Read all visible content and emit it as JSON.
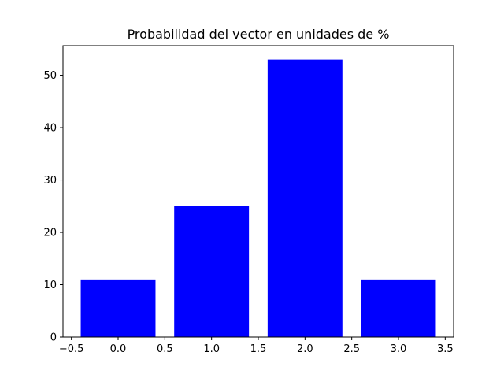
{
  "chart_data": {
    "type": "bar",
    "title": "Probabilidad del vector en unidades de %",
    "xlabel": "",
    "ylabel": "",
    "x": [
      0,
      1,
      2,
      3
    ],
    "values": [
      11,
      25,
      53,
      11
    ],
    "bar_width": 0.8,
    "bar_color": "#0000ff",
    "xlim": [
      -0.59,
      3.59
    ],
    "ylim": [
      0,
      55.65
    ],
    "xticks": [
      -0.5,
      0.0,
      0.5,
      1.0,
      1.5,
      2.0,
      2.5,
      3.0,
      3.5
    ],
    "xtick_labels": [
      "−0.5",
      "0.0",
      "0.5",
      "1.0",
      "1.5",
      "2.0",
      "2.5",
      "3.0",
      "3.5"
    ],
    "yticks": [
      0,
      10,
      20,
      30,
      40,
      50
    ],
    "ytick_labels": [
      "0",
      "10",
      "20",
      "30",
      "40",
      "50"
    ],
    "grid": false,
    "legend": "none"
  }
}
